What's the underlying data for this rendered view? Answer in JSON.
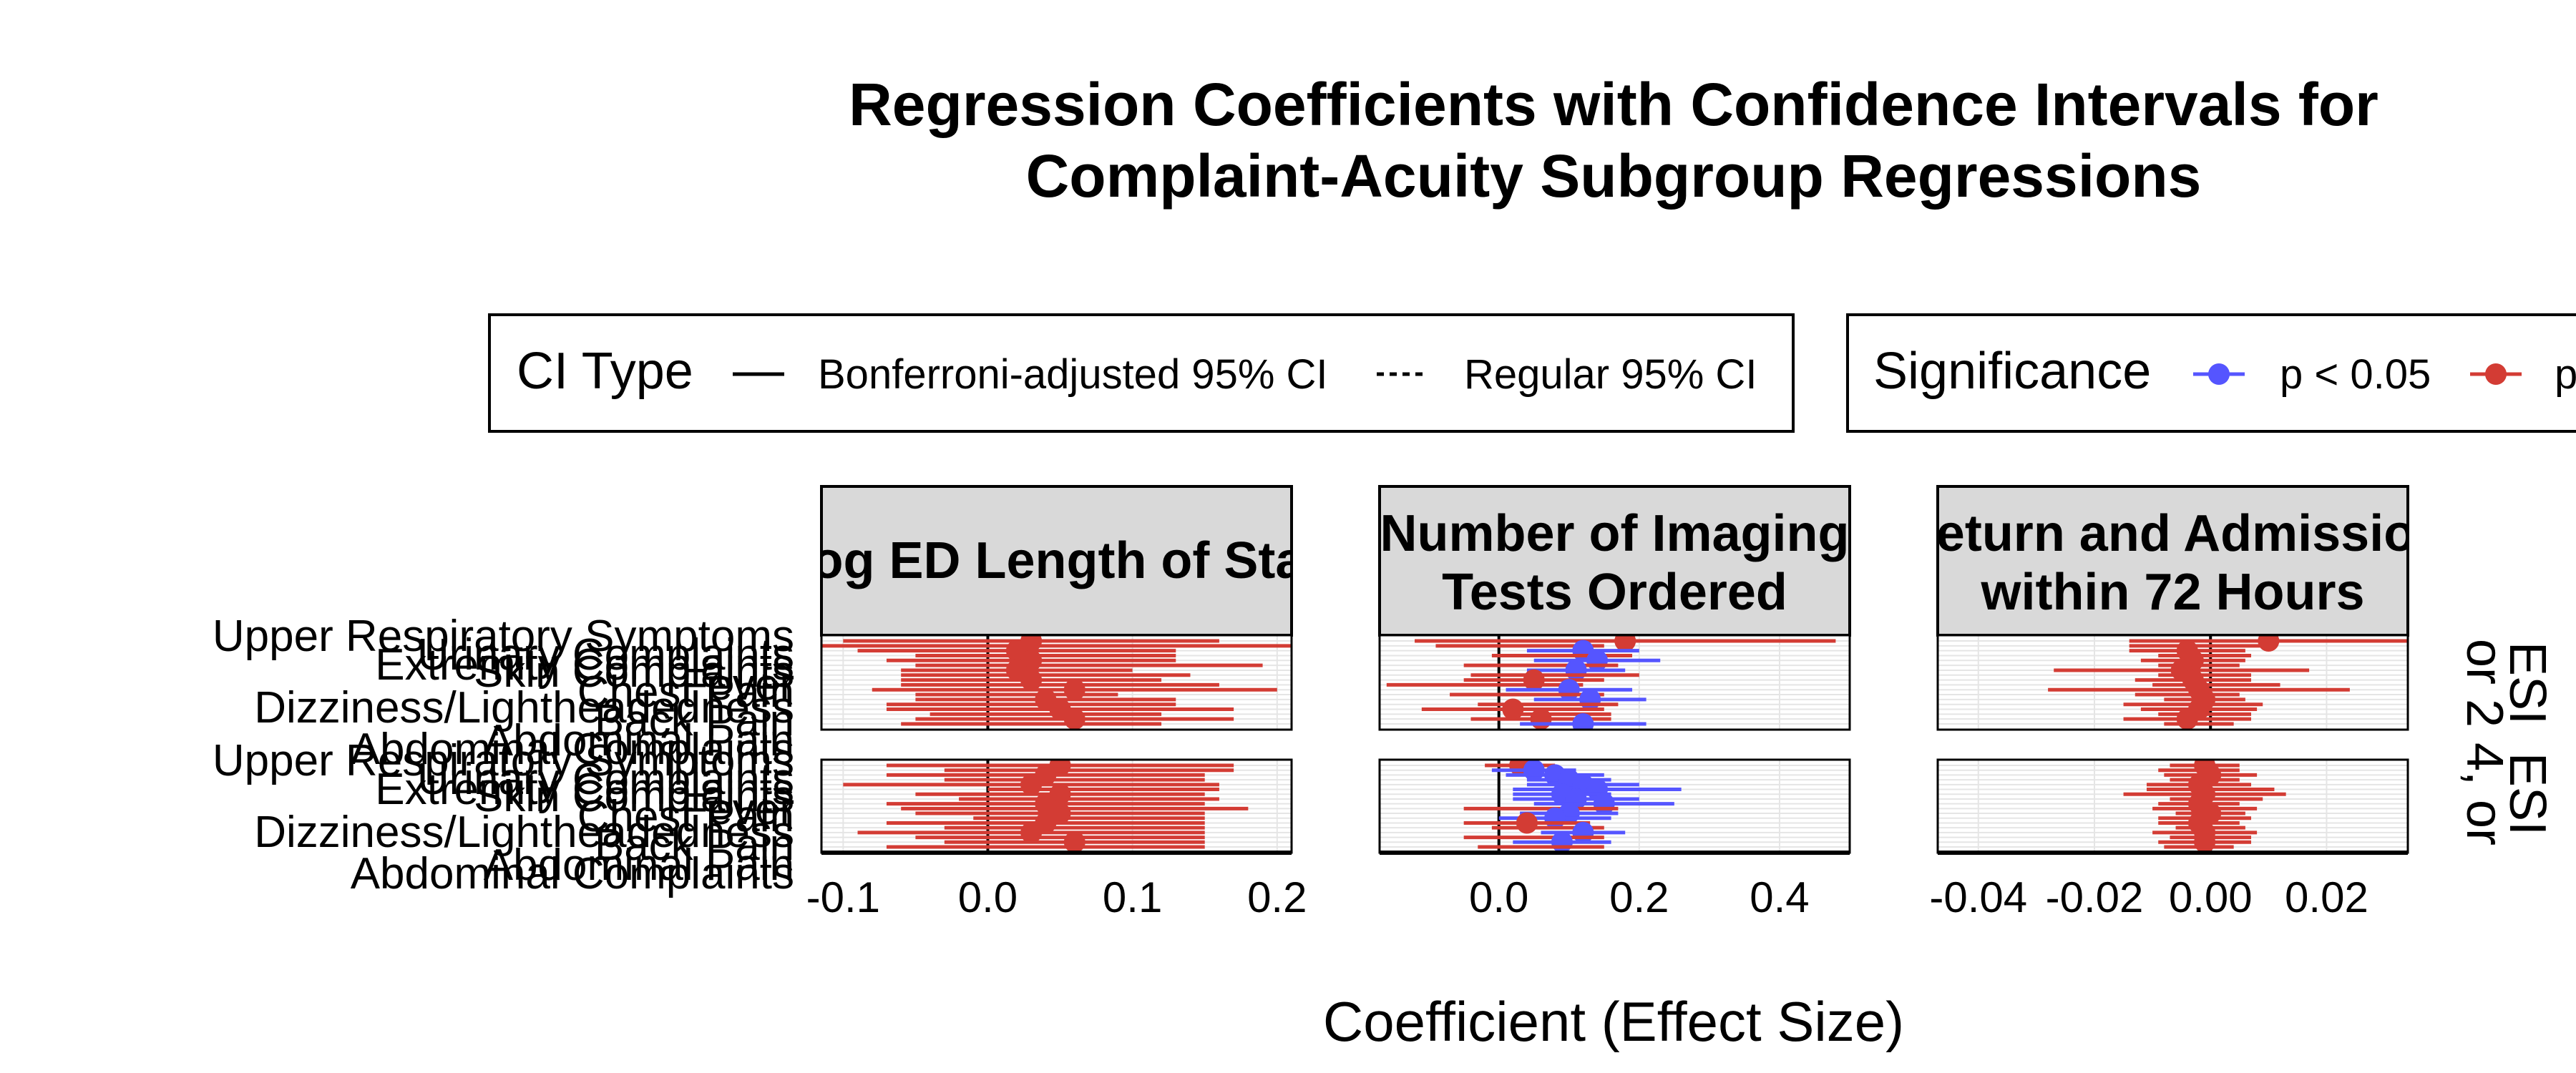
{
  "title_line1": "Regression Coefficients with Confidence Intervals for",
  "title_line2": "Complaint-Acuity Subgroup Regressions",
  "x_axis_label": "Coefficient (Effect Size)",
  "legends": {
    "ci_type": {
      "title": "CI Type",
      "entries": [
        {
          "label": "Bonferroni-adjusted 95% CI",
          "style": "solid"
        },
        {
          "label": "Regular 95% CI",
          "style": "dashed"
        }
      ]
    },
    "significance": {
      "title": "Significance",
      "entries": [
        {
          "label": "p < 0.05",
          "color": "#5555ff"
        },
        {
          "label": "p",
          "color": "#d33c34"
        }
      ]
    }
  },
  "colors": {
    "significant": "#5555ff",
    "not_significant": "#d33c34",
    "strip_background": "#d9d9d9",
    "grid": "#e5e5e5"
  },
  "y_tick_labels": [
    "Upper Respiratory Symptoms",
    "Urinary Complaints",
    "Fever",
    "Skin Complaints",
    "Extremity Complaints",
    "Dizziness/Lightheadedness",
    "Chest Pain",
    "Back Pain",
    "Abdominal Pain",
    "Abdominal Complaints"
  ],
  "row_strips": [
    {
      "label_lines": [
        "ESI",
        "or 2"
      ]
    },
    {
      "label_lines": [
        "ESI",
        "4, or"
      ]
    }
  ],
  "chart_data": {
    "type": "scatter",
    "facet_columns": [
      {
        "strip_lines": [
          "Log ED Length of Stay"
        ],
        "xlim": [
          -0.115,
          0.21
        ],
        "x_ticks": [
          -0.1,
          0.0,
          0.1,
          0.2
        ],
        "x_tick_labels": [
          "-0.1",
          "0.0",
          "0.1",
          "0.2"
        ],
        "panels": [
          {
            "estimates": [
              0.03,
              0.05,
              0.02,
              0.04,
              0.03,
              0.07,
              0.02,
              0.04,
              0.03,
              0.05,
              0.06,
              0.02,
              0.04,
              0.03,
              0.05,
              0.04,
              0.06,
              0.03
            ],
            "halfwidths": [
              0.13,
              0.17,
              0.11,
              0.09,
              0.1,
              0.12,
              0.08,
              0.1,
              0.09,
              0.11,
              0.14,
              0.07,
              0.09,
              0.1,
              0.12,
              0.08,
              0.11,
              0.09
            ],
            "significant": [
              false,
              false,
              false,
              false,
              false,
              false,
              false,
              false,
              false,
              false,
              false,
              false,
              false,
              false,
              false,
              false,
              false,
              false
            ]
          },
          {
            "estimates": [
              0.05,
              0.07,
              0.04,
              0.06,
              0.03,
              0.08,
              0.05,
              0.07,
              0.04,
              0.06,
              0.05,
              0.07,
              0.04,
              0.06,
              0.03,
              0.05,
              0.06,
              0.04
            ],
            "halfwidths": [
              0.12,
              0.1,
              0.11,
              0.09,
              0.13,
              0.08,
              0.1,
              0.09,
              0.11,
              0.12,
              0.1,
              0.08,
              0.11,
              0.09,
              0.12,
              0.1,
              0.09,
              0.11
            ],
            "significant": [
              false,
              false,
              false,
              false,
              false,
              false,
              false,
              false,
              false,
              false,
              false,
              false,
              false,
              false,
              false,
              false,
              false,
              false
            ]
          }
        ]
      },
      {
        "strip_lines": [
          "Number of Imaging",
          "Tests Ordered"
        ],
        "xlim": [
          -0.17,
          0.5
        ],
        "x_ticks": [
          0.0,
          0.2,
          0.4
        ],
        "x_tick_labels": [
          "0.0",
          "0.2",
          "0.4"
        ],
        "panels": [
          {
            "estimates": [
              0.18,
              0.03,
              0.12,
              0.09,
              0.14,
              0.06,
              0.11,
              0.08,
              0.05,
              -0.02,
              0.1,
              0.04,
              0.13,
              0.07,
              0.02,
              0.09,
              0.06,
              0.12
            ],
            "halfwidths": [
              0.3,
              0.12,
              0.08,
              0.1,
              0.09,
              0.11,
              0.07,
              0.12,
              0.1,
              0.14,
              0.09,
              0.11,
              0.08,
              0.1,
              0.13,
              0.07,
              0.1,
              0.09
            ],
            "significant": [
              false,
              false,
              true,
              false,
              true,
              false,
              true,
              false,
              false,
              false,
              true,
              false,
              true,
              false,
              false,
              false,
              false,
              true
            ]
          },
          {
            "estimates": [
              0.03,
              0.05,
              0.08,
              0.1,
              0.12,
              0.14,
              0.09,
              0.11,
              0.15,
              0.06,
              0.1,
              0.08,
              0.04,
              0.07,
              0.12,
              0.05,
              0.09,
              0.06
            ],
            "halfwidths": [
              0.05,
              0.06,
              0.07,
              0.06,
              0.08,
              0.12,
              0.07,
              0.09,
              0.1,
              0.11,
              0.07,
              0.08,
              0.09,
              0.08,
              0.06,
              0.1,
              0.07,
              0.09
            ],
            "significant": [
              false,
              true,
              true,
              true,
              true,
              true,
              true,
              true,
              true,
              false,
              true,
              true,
              false,
              false,
              true,
              false,
              true,
              false
            ]
          }
        ]
      },
      {
        "strip_lines": [
          "Return and Admission",
          "within 72 Hours"
        ],
        "xlim": [
          -0.047,
          0.034
        ],
        "x_ticks": [
          -0.04,
          -0.02,
          0.0,
          0.02
        ],
        "x_tick_labels": [
          "-0.04",
          "-0.02",
          "0.00",
          "0.02"
        ],
        "panels": [
          {
            "estimates": [
              0.01,
              -0.002,
              -0.004,
              -0.001,
              -0.003,
              -0.002,
              -0.005,
              -0.001,
              -0.003,
              0.001,
              -0.002,
              -0.004,
              -0.001,
              -0.003,
              -0.002,
              -0.001,
              -0.004,
              -0.002
            ],
            "halfwidths": [
              0.024,
              0.012,
              0.01,
              0.008,
              0.009,
              0.007,
              0.022,
              0.008,
              0.01,
              0.011,
              0.026,
              0.009,
              0.007,
              0.012,
              0.01,
              0.008,
              0.011,
              0.006
            ],
            "significant": [
              false,
              false,
              false,
              false,
              false,
              false,
              false,
              false,
              false,
              false,
              false,
              false,
              false,
              false,
              false,
              false,
              false,
              false
            ]
          },
          {
            "estimates": [
              -0.001,
              -0.002,
              0.0,
              -0.001,
              -0.002,
              0.0,
              -0.001,
              0.001,
              -0.002,
              -0.001,
              0.0,
              -0.001,
              -0.002,
              0.0,
              -0.001,
              0.0,
              -0.001,
              -0.002
            ],
            "halfwidths": [
              0.006,
              0.007,
              0.008,
              0.006,
              0.009,
              0.011,
              0.014,
              0.008,
              0.007,
              0.009,
              0.006,
              0.008,
              0.007,
              0.006,
              0.009,
              0.007,
              0.008,
              0.006
            ],
            "significant": [
              false,
              false,
              false,
              false,
              false,
              false,
              false,
              false,
              false,
              false,
              false,
              false,
              false,
              false,
              false,
              false,
              false,
              false
            ]
          }
        ]
      }
    ]
  }
}
